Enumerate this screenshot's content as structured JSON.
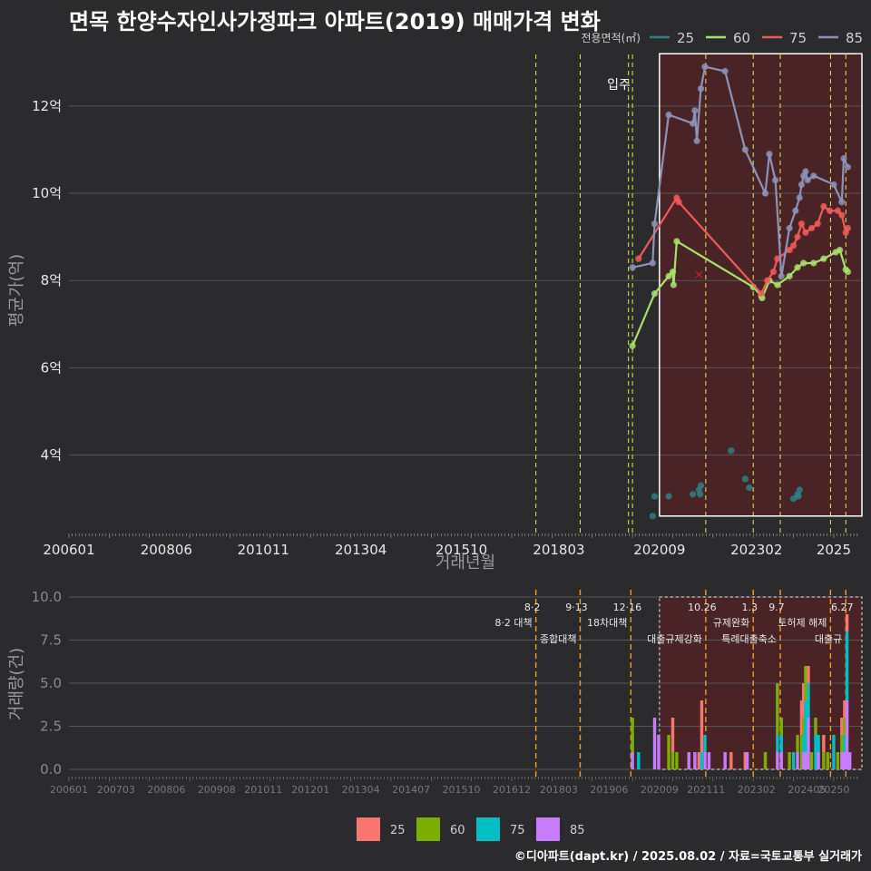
{
  "title": "면목 한양수자인사가정파크 아파트(2019) 매매가격 변화",
  "footer": "©디아파트(dapt.kr) / 2025.08.02 / 자료=국토교통부 실거래가",
  "colors": {
    "bg": "#2b2b2d",
    "grid": "#555555",
    "vline": "#e8e85a",
    "vline_bar": "#f0a020",
    "shade": "#4a2326",
    "box": "#ffffff",
    "s25": "#2e7f86",
    "s60": "#a6e06c",
    "s75": "#ee5a5a",
    "s85": "#8c92b8",
    "b25": "#f8766d",
    "b60": "#7cae00",
    "b75": "#00bfc4",
    "b85": "#c77cff"
  },
  "chart_data": [
    {
      "type": "line",
      "title": "면목 한양수자인사가정파크 아파트(2019) 매매가격 변화",
      "xlabel": "거래년월",
      "ylabel": "평균가(억)",
      "ylim": [
        2.2,
        13.6
      ],
      "xlim": [
        2006.0,
        2025.7
      ],
      "yticks": [
        4,
        6,
        8,
        10,
        12
      ],
      "ytick_labels": [
        "4억",
        "6억",
        "8억",
        "10억",
        "12억"
      ],
      "xticks": [
        2006.0,
        2008.42,
        2010.83,
        2013.25,
        2015.75,
        2018.17,
        2020.67,
        2023.08,
        2025.0
      ],
      "xtick_labels": [
        "200601",
        "200806",
        "201011",
        "201304",
        "201510",
        "201803",
        "202009",
        "202302",
        "2025"
      ],
      "legend_title": "전용면적(㎡)",
      "legend_position": "top-right",
      "legend": [
        "25",
        "60",
        "75",
        "85"
      ],
      "annotation": "입주",
      "events_x": [
        2017.6,
        2018.7,
        2019.9,
        2020.0,
        2021.82,
        2023.0,
        2023.67,
        2024.92,
        2025.3
      ],
      "highlight_range": [
        2020.67,
        2025.7
      ],
      "series": [
        {
          "name": "25",
          "line": false,
          "points": [
            [
              2020.55,
              3.05
            ],
            [
              2020.5,
              2.6
            ],
            [
              2020.9,
              3.05
            ],
            [
              2021.5,
              3.1
            ],
            [
              2021.65,
              3.2
            ],
            [
              2021.7,
              3.3
            ],
            [
              2021.68,
              3.1
            ],
            [
              2022.45,
              4.1
            ],
            [
              2022.8,
              3.45
            ],
            [
              2022.9,
              3.25
            ],
            [
              2024.0,
              3.0
            ],
            [
              2024.1,
              3.1
            ],
            [
              2024.15,
              3.2
            ],
            [
              2024.12,
              3.05
            ]
          ]
        },
        {
          "name": "60",
          "line": true,
          "points": [
            [
              2020.0,
              6.5
            ],
            [
              2020.55,
              7.7
            ],
            [
              2020.9,
              8.1
            ],
            [
              2021.0,
              8.2
            ],
            [
              2021.02,
              7.9
            ],
            [
              2021.1,
              8.9
            ],
            [
              2023.0,
              7.85
            ],
            [
              2023.2,
              7.65
            ],
            [
              2023.22,
              7.6
            ],
            [
              2023.4,
              8.0
            ],
            [
              2023.6,
              7.9
            ],
            [
              2023.9,
              8.1
            ],
            [
              2024.1,
              8.3
            ],
            [
              2024.25,
              8.4
            ],
            [
              2024.5,
              8.4
            ],
            [
              2024.75,
              8.5
            ],
            [
              2025.05,
              8.65
            ],
            [
              2025.15,
              8.7
            ],
            [
              2025.3,
              8.25
            ],
            [
              2025.35,
              8.2
            ]
          ]
        },
        {
          "name": "75",
          "line": true,
          "points": [
            [
              2020.15,
              8.5
            ],
            [
              2021.1,
              9.9
            ],
            [
              2021.15,
              9.8
            ],
            [
              2023.2,
              7.7
            ],
            [
              2023.35,
              8.0
            ],
            [
              2023.5,
              8.2
            ],
            [
              2023.6,
              8.5
            ],
            [
              2023.9,
              8.7
            ],
            [
              2024.0,
              8.8
            ],
            [
              2024.1,
              9.0
            ],
            [
              2024.2,
              9.3
            ],
            [
              2024.3,
              9.1
            ],
            [
              2024.45,
              9.2
            ],
            [
              2024.6,
              9.3
            ],
            [
              2024.75,
              9.7
            ],
            [
              2024.9,
              9.6
            ],
            [
              2025.1,
              9.6
            ],
            [
              2025.2,
              9.5
            ],
            [
              2025.3,
              9.1
            ],
            [
              2025.35,
              9.2
            ]
          ]
        },
        {
          "name": "85",
          "line": true,
          "points": [
            [
              2020.0,
              8.3
            ],
            [
              2020.5,
              8.4
            ],
            [
              2020.55,
              9.3
            ],
            [
              2020.9,
              11.8
            ],
            [
              2021.5,
              11.6
            ],
            [
              2021.55,
              11.9
            ],
            [
              2021.6,
              11.2
            ],
            [
              2021.7,
              12.4
            ],
            [
              2021.8,
              12.9
            ],
            [
              2022.3,
              12.8
            ],
            [
              2022.8,
              11.0
            ],
            [
              2023.3,
              10.0
            ],
            [
              2023.4,
              10.9
            ],
            [
              2023.55,
              10.3
            ],
            [
              2023.7,
              8.1
            ],
            [
              2023.9,
              9.2
            ],
            [
              2024.05,
              9.6
            ],
            [
              2024.15,
              9.9
            ],
            [
              2024.2,
              10.2
            ],
            [
              2024.25,
              10.4
            ],
            [
              2024.3,
              10.5
            ],
            [
              2024.35,
              10.3
            ],
            [
              2024.5,
              10.4
            ],
            [
              2025.0,
              10.2
            ],
            [
              2025.2,
              9.8
            ],
            [
              2025.25,
              10.8
            ],
            [
              2025.35,
              10.6
            ]
          ]
        }
      ],
      "extra_marker": {
        "label": "×",
        "x": 2021.65,
        "y": 8.15
      }
    },
    {
      "type": "bar",
      "xlabel": "",
      "ylabel": "거래량(건)",
      "ylim": [
        0,
        10
      ],
      "yticks": [
        0,
        2.5,
        5,
        7.5,
        10
      ],
      "ytick_labels": [
        "0.0",
        "2.5",
        "5.0",
        "7.5",
        "10.0"
      ],
      "xticks": [
        2006.0,
        2007.17,
        2008.42,
        2009.67,
        2010.83,
        2012.0,
        2013.25,
        2014.5,
        2015.75,
        2017.0,
        2018.17,
        2019.42,
        2020.67,
        2021.83,
        2023.08,
        2024.33,
        2025.0
      ],
      "xtick_labels": [
        "200601",
        "200703",
        "200806",
        "200908",
        "201011",
        "201201",
        "201304",
        "201407",
        "201510",
        "201612",
        "201803",
        "201906",
        "202009",
        "202111",
        "202302",
        "202405",
        "20250"
      ],
      "legend": [
        "25",
        "60",
        "75",
        "85"
      ],
      "legend_position": "bottom",
      "events": [
        {
          "x": 2017.6,
          "date": "8·2",
          "label": "8·2 대책"
        },
        {
          "x": 2018.7,
          "date": "9·13",
          "label": "종합대책"
        },
        {
          "x": 2019.96,
          "date": "12·16",
          "label": "18차대책"
        },
        {
          "x": 2021.82,
          "date": "10.26",
          "label": "대출규제강화"
        },
        {
          "x": 2023.0,
          "date": "1.3",
          "label": "규제완화"
        },
        {
          "x": 2023.67,
          "date": "9.7",
          "label": "특례대출축소"
        },
        {
          "x": 2024.92,
          "date": "",
          "label": "토허제 해제"
        },
        {
          "x": 2025.3,
          "date": "6.27",
          "label": "대출규"
        }
      ],
      "highlight_range": [
        2020.67,
        2025.7
      ],
      "bars": [
        {
          "x": 2020.0,
          "s60": 2,
          "s75": 0,
          "s85": 1,
          "s25": 0
        },
        {
          "x": 2020.15,
          "s60": 0,
          "s75": 1,
          "s85": 0,
          "s25": 0
        },
        {
          "x": 2020.55,
          "s60": 0,
          "s75": 0,
          "s85": 3,
          "s25": 0
        },
        {
          "x": 2020.65,
          "s60": 0,
          "s75": 0,
          "s85": 2,
          "s25": 0
        },
        {
          "x": 2020.9,
          "s60": 2,
          "s75": 0,
          "s85": 0,
          "s25": 0
        },
        {
          "x": 2021.0,
          "s60": 1,
          "s75": 0,
          "s85": 0,
          "s25": 2
        },
        {
          "x": 2021.1,
          "s60": 1,
          "s75": 0,
          "s85": 0,
          "s25": 0
        },
        {
          "x": 2021.4,
          "s60": 0,
          "s75": 0,
          "s85": 1,
          "s25": 0
        },
        {
          "x": 2021.55,
          "s60": 0,
          "s75": 0,
          "s85": 1,
          "s25": 0
        },
        {
          "x": 2021.65,
          "s60": 0,
          "s75": 0,
          "s85": 0,
          "s25": 1
        },
        {
          "x": 2021.72,
          "s60": 0,
          "s75": 1,
          "s85": 0,
          "s25": 3
        },
        {
          "x": 2021.8,
          "s60": 0,
          "s75": 1,
          "s85": 1,
          "s25": 0
        },
        {
          "x": 2021.9,
          "s60": 0,
          "s75": 0,
          "s85": 1,
          "s25": 0
        },
        {
          "x": 2022.3,
          "s60": 0,
          "s75": 0,
          "s85": 1,
          "s25": 0
        },
        {
          "x": 2022.45,
          "s60": 0,
          "s75": 0,
          "s85": 0,
          "s25": 1
        },
        {
          "x": 2022.8,
          "s60": 0,
          "s75": 0,
          "s85": 0,
          "s25": 1
        },
        {
          "x": 2022.85,
          "s60": 0,
          "s75": 0,
          "s85": 1,
          "s25": 0
        },
        {
          "x": 2023.3,
          "s60": 1,
          "s75": 0,
          "s85": 0,
          "s25": 0
        },
        {
          "x": 2023.6,
          "s60": 3,
          "s75": 1,
          "s85": 1,
          "s25": 0
        },
        {
          "x": 2023.7,
          "s60": 1,
          "s75": 1,
          "s85": 1,
          "s25": 0
        },
        {
          "x": 2023.9,
          "s60": 1,
          "s75": 0,
          "s85": 0,
          "s25": 0
        },
        {
          "x": 2024.0,
          "s60": 0,
          "s75": 1,
          "s85": 0,
          "s25": 0
        },
        {
          "x": 2024.1,
          "s60": 1,
          "s75": 0,
          "s85": 1,
          "s25": 0
        },
        {
          "x": 2024.2,
          "s60": 2,
          "s75": 0,
          "s85": 0,
          "s25": 2
        },
        {
          "x": 2024.25,
          "s60": 1,
          "s75": 1,
          "s85": 1,
          "s25": 2
        },
        {
          "x": 2024.3,
          "s60": 2,
          "s75": 3,
          "s85": 1,
          "s25": 0
        },
        {
          "x": 2024.37,
          "s60": 0,
          "s75": 2,
          "s85": 3,
          "s25": 1
        },
        {
          "x": 2024.45,
          "s60": 1,
          "s75": 0,
          "s85": 0,
          "s25": 0
        },
        {
          "x": 2024.55,
          "s60": 1,
          "s75": 2,
          "s85": 0,
          "s25": 0
        },
        {
          "x": 2024.62,
          "s60": 0,
          "s75": 1,
          "s85": 1,
          "s25": 0
        },
        {
          "x": 2024.75,
          "s60": 1,
          "s75": 0,
          "s85": 0,
          "s25": 1
        },
        {
          "x": 2024.85,
          "s60": 1,
          "s75": 0,
          "s85": 0,
          "s25": 0
        },
        {
          "x": 2025.0,
          "s60": 0,
          "s75": 2,
          "s85": 0,
          "s25": 0
        },
        {
          "x": 2025.1,
          "s60": 1,
          "s75": 0,
          "s85": 0,
          "s25": 0
        },
        {
          "x": 2025.2,
          "s60": 1,
          "s75": 0,
          "s85": 1,
          "s25": 1
        },
        {
          "x": 2025.27,
          "s60": 1,
          "s75": 1,
          "s85": 1,
          "s25": 1
        },
        {
          "x": 2025.33,
          "s60": 0,
          "s75": 4,
          "s85": 4,
          "s25": 1
        },
        {
          "x": 2025.4,
          "s60": 0,
          "s75": 0,
          "s85": 1,
          "s25": 0
        }
      ]
    }
  ]
}
